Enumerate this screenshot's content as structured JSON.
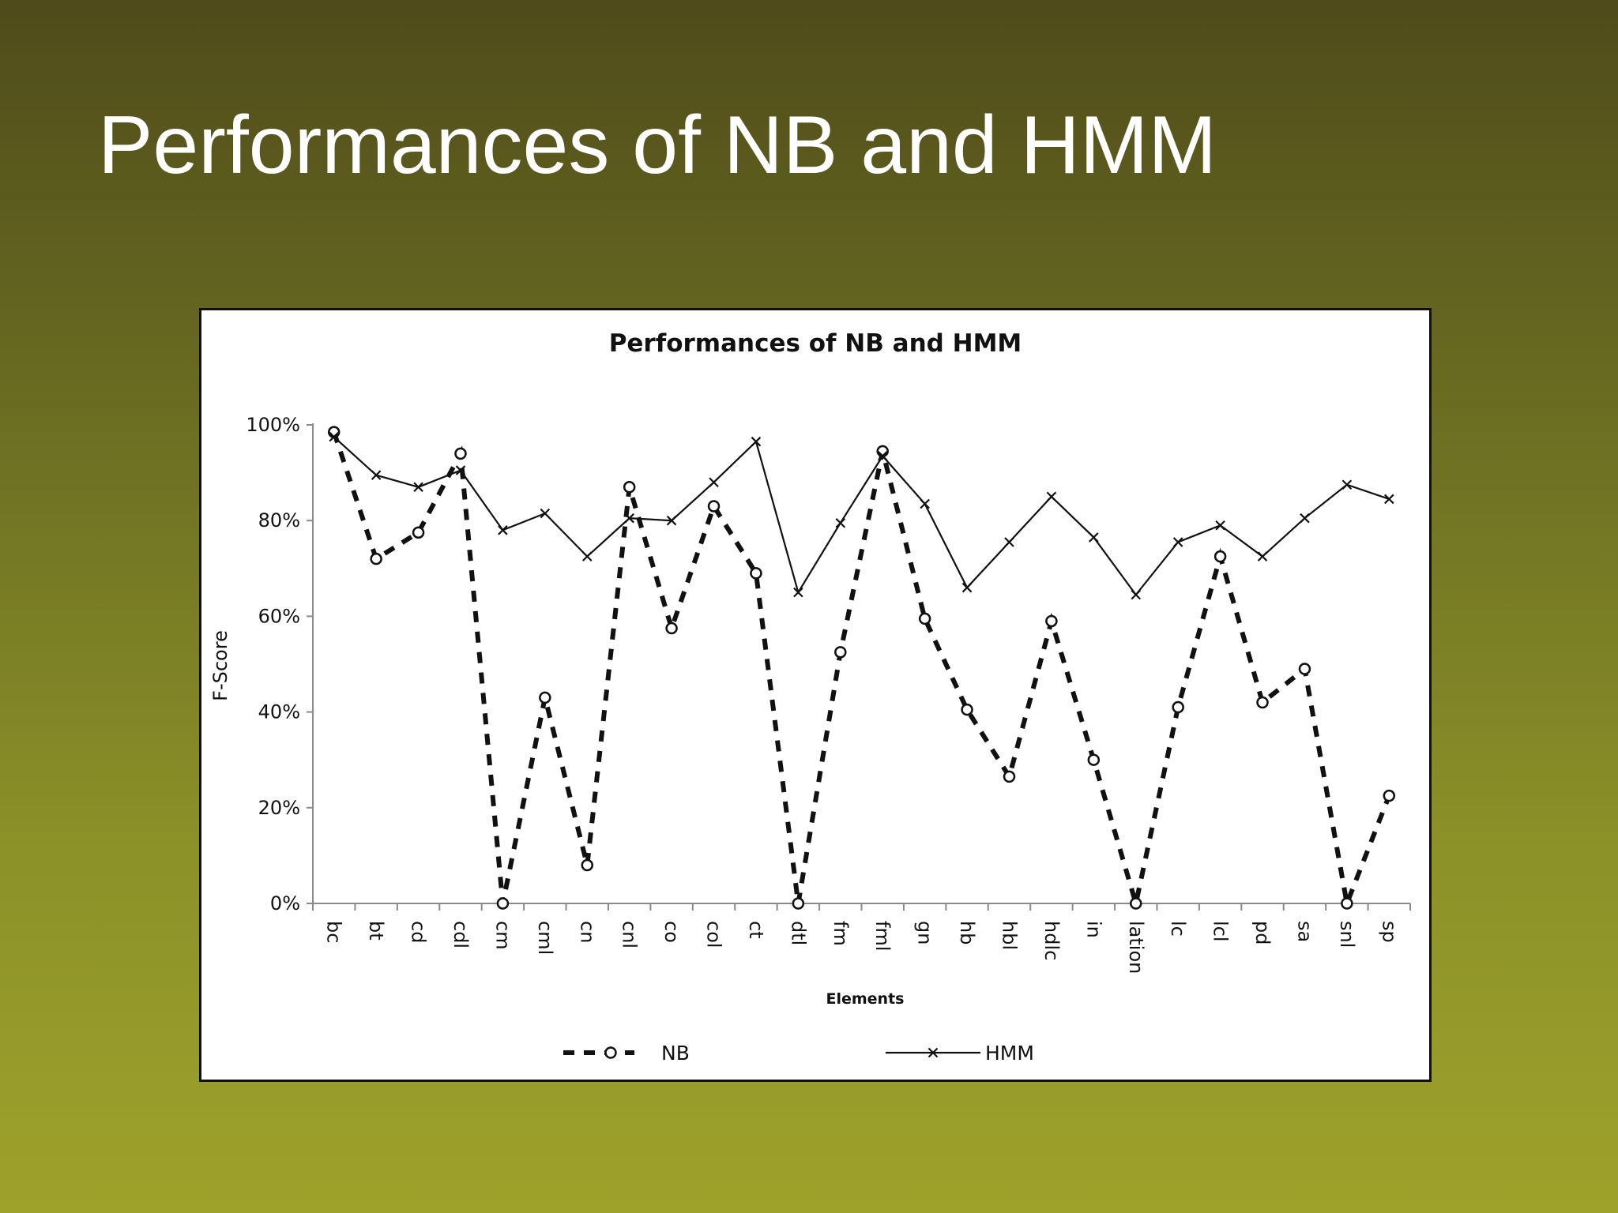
{
  "slide": {
    "title": "Performances of NB and HMM"
  },
  "colors": {
    "background_top": "#4f4b1a",
    "background_bottom": "#9ea22b",
    "title_text": "#ffffff",
    "chart_background": "#ffffff",
    "series_color": "#111111"
  },
  "chart_data": {
    "type": "line",
    "title": "Performances of NB and HMM",
    "xlabel": "Elements",
    "ylabel": "F-Score",
    "ylim": [
      0,
      100
    ],
    "yticks": [
      "0%",
      "20%",
      "40%",
      "60%",
      "80%",
      "100%"
    ],
    "ytick_values": [
      0,
      20,
      40,
      60,
      80,
      100
    ],
    "grid": false,
    "legend_position": "bottom",
    "categories": [
      "bc",
      "bt",
      "cd",
      "cdl",
      "cm",
      "cml",
      "cn",
      "cnl",
      "co",
      "col",
      "ct",
      "dtl",
      "fm",
      "fml",
      "gn",
      "hb",
      "hbl",
      "hdlc",
      "in",
      "lation",
      "lc",
      "lcl",
      "pd",
      "sa",
      "snl",
      "sp"
    ],
    "series": [
      {
        "name": "NB",
        "line_style": "dashed",
        "marker": "circle",
        "values": [
          98.5,
          72,
          77.5,
          94,
          0,
          43,
          8,
          87,
          57.5,
          83,
          69,
          0,
          52.5,
          94.5,
          59.5,
          40.5,
          26.5,
          59,
          30,
          0,
          41,
          72.5,
          42,
          49,
          0,
          22.5
        ]
      },
      {
        "name": "HMM",
        "line_style": "solid",
        "marker": "x",
        "values": [
          97.5,
          89.5,
          87,
          90.5,
          78,
          81.5,
          72.5,
          80.5,
          80,
          88,
          96.5,
          65,
          79.5,
          93.5,
          83.5,
          66,
          75.5,
          85,
          76.5,
          64.5,
          75.5,
          79,
          72.5,
          80.5,
          87.5,
          84.5
        ]
      }
    ]
  }
}
